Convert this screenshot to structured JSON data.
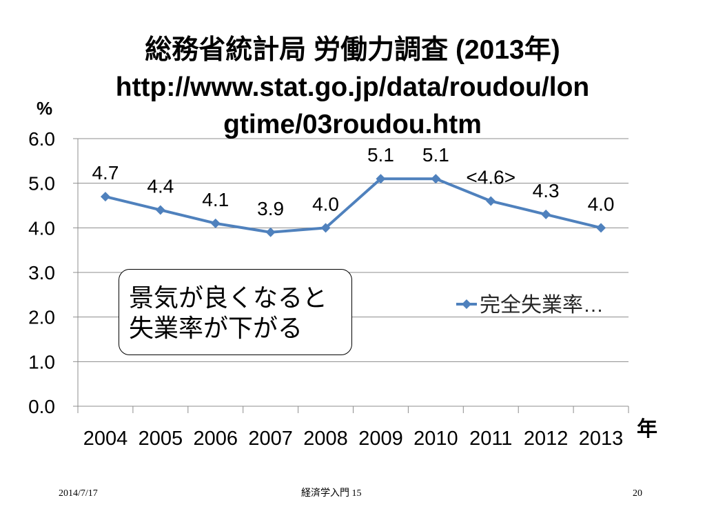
{
  "chart_data": {
    "type": "line",
    "title_lines": [
      "総務省統計局 労働力調査 (2013年)",
      "http://www.stat.go.jp/data/roudou/lon",
      "gtime/03roudou.htm"
    ],
    "categories": [
      "2004",
      "2005",
      "2006",
      "2007",
      "2008",
      "2009",
      "2010",
      "2011",
      "2012",
      "2013"
    ],
    "series": [
      {
        "name": "完全失業率…",
        "values": [
          4.7,
          4.4,
          4.1,
          3.9,
          4.0,
          5.1,
          5.1,
          4.6,
          4.3,
          4.0
        ],
        "data_labels": [
          "4.7",
          "4.4",
          "4.1",
          "3.9",
          "4.0",
          "5.1",
          "5.1",
          "<4.6>",
          "4.3",
          "4.0"
        ],
        "color": "#4F81BD"
      }
    ],
    "xlabel": "年",
    "ylabel": "%",
    "ylim": [
      0,
      6
    ],
    "yticks": [
      "0.0",
      "1.0",
      "2.0",
      "3.0",
      "4.0",
      "5.0",
      "6.0"
    ],
    "grid": true,
    "legend": "right",
    "annotation_lines": [
      "景気が良くなると",
      "失業率が下がる"
    ]
  },
  "colors": {
    "gridline": "#8C8C8C",
    "legend_text": "#262626"
  },
  "footer": {
    "date": "2014/7/17",
    "course": "経済学入門 15",
    "page": "20"
  }
}
